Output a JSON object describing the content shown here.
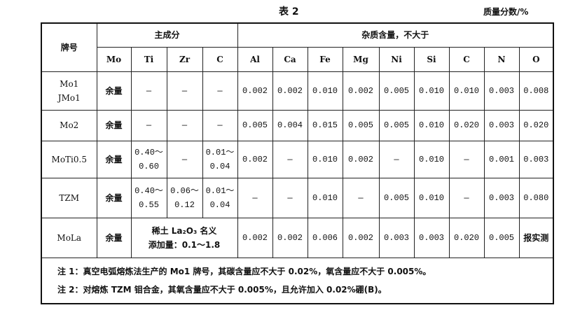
{
  "title": "表 2",
  "unit": "质量分数/%",
  "headers": {
    "grade": "牌号",
    "main": "主成分",
    "impurity": "杂质含量，不大于",
    "main_cols": [
      "Mo",
      "Ti",
      "Zr",
      "C"
    ],
    "imp_cols": [
      "Al",
      "Ca",
      "Fe",
      "Mg",
      "Ni",
      "Si",
      "C",
      "N",
      "O"
    ]
  },
  "rows": [
    {
      "grade": [
        "Mo1",
        "JMo1"
      ],
      "mo": "余量",
      "ti": [
        "—"
      ],
      "zr": [
        "—"
      ],
      "c": [
        "—"
      ],
      "imp": [
        "0.002",
        "0.002",
        "0.010",
        "0.002",
        "0.005",
        "0.010",
        "0.010",
        "0.003",
        "0.008"
      ]
    },
    {
      "grade": [
        "Mo2"
      ],
      "mo": "余量",
      "ti": [
        "—"
      ],
      "zr": [
        "—"
      ],
      "c": [
        "—"
      ],
      "imp": [
        "0.005",
        "0.004",
        "0.015",
        "0.005",
        "0.005",
        "0.010",
        "0.020",
        "0.003",
        "0.020"
      ]
    },
    {
      "grade": [
        "MoTi0.5"
      ],
      "mo": "余量",
      "ti": [
        "0.40～",
        "0.60"
      ],
      "zr": [
        "—"
      ],
      "c": [
        "0.01～",
        "0.04"
      ],
      "imp": [
        "0.002",
        "—",
        "0.010",
        "0.002",
        "—",
        "0.010",
        "—",
        "0.001",
        "0.003"
      ]
    },
    {
      "grade": [
        "TZM"
      ],
      "mo": "余量",
      "ti": [
        "0.40～",
        "0.55"
      ],
      "zr": [
        "0.06～",
        "0.12"
      ],
      "c": [
        "0.01～",
        "0.04"
      ],
      "imp": [
        "—",
        "—",
        "0.010",
        "—",
        "0.005",
        "0.010",
        "—",
        "0.003",
        "0.080"
      ]
    },
    {
      "grade": [
        "MoLa"
      ],
      "mo": "余量",
      "merged": [
        "稀土 La₂O₃ 名义",
        "添加量：0.1～1.8"
      ],
      "imp": [
        "0.002",
        "0.002",
        "0.006",
        "0.002",
        "0.003",
        "0.003",
        "0.020",
        "0.005",
        "报实测"
      ]
    }
  ],
  "notes": [
    "注 1：真空电弧熔炼法生产的 Mo1 牌号，其碳含量应不大于 0.02%，氧含量应不大于 0.005%。",
    "注 2：对熔炼 TZM 钼合金，其氧含量应不大于 0.005%，且允许加入 0.02%硼(B)。"
  ]
}
